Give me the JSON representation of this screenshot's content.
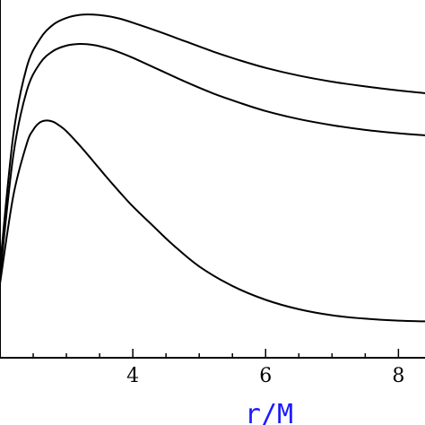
{
  "chart_data": {
    "type": "line",
    "title": "",
    "xlabel": "r/M",
    "ylabel": "",
    "xlim": [
      2.0,
      8.4
    ],
    "ylim": [
      0.0,
      1.0
    ],
    "x_ticks": [
      {
        "value": 4,
        "label": "4"
      },
      {
        "value": 6,
        "label": "6"
      },
      {
        "value": 8,
        "label": "8"
      }
    ],
    "x_minor_ticks": [
      2.5,
      3.0,
      3.5,
      4.5,
      5.0,
      5.5,
      6.5,
      7.0,
      7.5
    ],
    "grid": false,
    "legend": "none",
    "series": [
      {
        "x": [
          2.0,
          2.2,
          2.4,
          2.6,
          2.8,
          3.0,
          3.2,
          3.4,
          3.6,
          3.8,
          4.0,
          4.4,
          4.8,
          5.2,
          5.6,
          6.0,
          6.5,
          7.0,
          7.5,
          8.0,
          8.4
        ],
        "y": [
          0.23,
          0.62,
          0.82,
          0.905,
          0.948,
          0.968,
          0.977,
          0.978,
          0.974,
          0.966,
          0.954,
          0.927,
          0.898,
          0.869,
          0.843,
          0.82,
          0.797,
          0.779,
          0.765,
          0.753,
          0.745
        ]
      },
      {
        "x": [
          2.0,
          2.2,
          2.4,
          2.6,
          2.8,
          3.0,
          3.2,
          3.4,
          3.6,
          3.8,
          4.0,
          4.4,
          4.8,
          5.2,
          5.6,
          6.0,
          6.5,
          7.0,
          7.5,
          8.0,
          8.4
        ],
        "y": [
          0.2,
          0.56,
          0.75,
          0.833,
          0.87,
          0.886,
          0.891,
          0.888,
          0.879,
          0.866,
          0.85,
          0.814,
          0.778,
          0.745,
          0.717,
          0.692,
          0.668,
          0.65,
          0.636,
          0.626,
          0.62
        ]
      },
      {
        "x": [
          2.0,
          2.2,
          2.4,
          2.5,
          2.6,
          2.7,
          2.8,
          2.9,
          3.0,
          3.2,
          3.4,
          3.6,
          3.8,
          4.0,
          4.3,
          4.6,
          5.0,
          5.5,
          6.0,
          6.5,
          7.0,
          7.5,
          8.0,
          8.4
        ],
        "y": [
          0.18,
          0.44,
          0.593,
          0.636,
          0.658,
          0.664,
          0.66,
          0.648,
          0.632,
          0.59,
          0.544,
          0.497,
          0.452,
          0.409,
          0.352,
          0.296,
          0.231,
          0.173,
          0.132,
          0.104,
          0.086,
          0.076,
          0.07,
          0.068
        ]
      }
    ]
  }
}
